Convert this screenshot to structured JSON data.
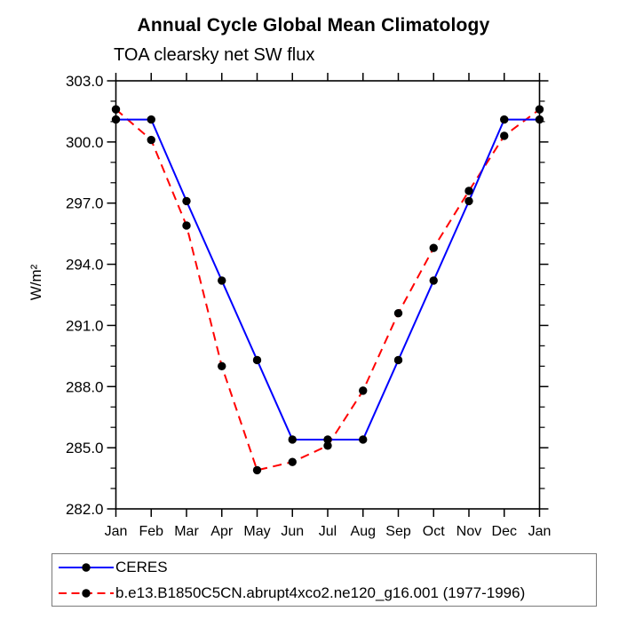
{
  "header": {
    "title": "Annual Cycle Global Mean Climatology",
    "subtitle": "TOA clearsky net SW flux"
  },
  "chart_data": {
    "type": "line",
    "title": "Annual Cycle Global Mean Climatology",
    "subtitle": "TOA clearsky net SW flux",
    "xlabel": "",
    "ylabel": "W/m²",
    "ylim": [
      282.0,
      303.0
    ],
    "ytick_step": 3.0,
    "ytick_minor_step": 1.0,
    "ytick_labels": [
      "282.0",
      "285.0",
      "288.0",
      "291.0",
      "294.0",
      "297.0",
      "300.0",
      "303.0"
    ],
    "grid": false,
    "legend_position": "bottom-left-box",
    "categories": [
      "Jan",
      "Feb",
      "Mar",
      "Apr",
      "May",
      "Jun",
      "Jul",
      "Aug",
      "Sep",
      "Oct",
      "Nov",
      "Dec",
      "Jan"
    ],
    "series": [
      {
        "name": "CERES",
        "color": "#0000ff",
        "line_style": "solid",
        "marker": "filled-circle",
        "marker_color": "#000000",
        "values": [
          301.1,
          301.1,
          297.1,
          293.2,
          289.3,
          285.4,
          285.4,
          285.4,
          289.3,
          293.2,
          297.1,
          301.1,
          301.1
        ]
      },
      {
        "name": "b.e13.B1850C5CN.abrupt4xco2.ne120_g16.001 (1977-1996)",
        "color": "#ff0000",
        "line_style": "dashed",
        "marker": "filled-circle",
        "marker_color": "#000000",
        "values": [
          301.6,
          300.1,
          295.9,
          289.0,
          283.9,
          284.3,
          285.1,
          287.8,
          291.6,
          294.8,
          297.6,
          300.3,
          301.6
        ]
      }
    ]
  },
  "legend": {
    "items": [
      {
        "label": "CERES",
        "color": "#0000ff",
        "style": "solid"
      },
      {
        "label": "b.e13.B1850C5CN.abrupt4xco2.ne120_g16.001 (1977-1996)",
        "color": "#ff0000",
        "style": "dashed"
      }
    ]
  }
}
